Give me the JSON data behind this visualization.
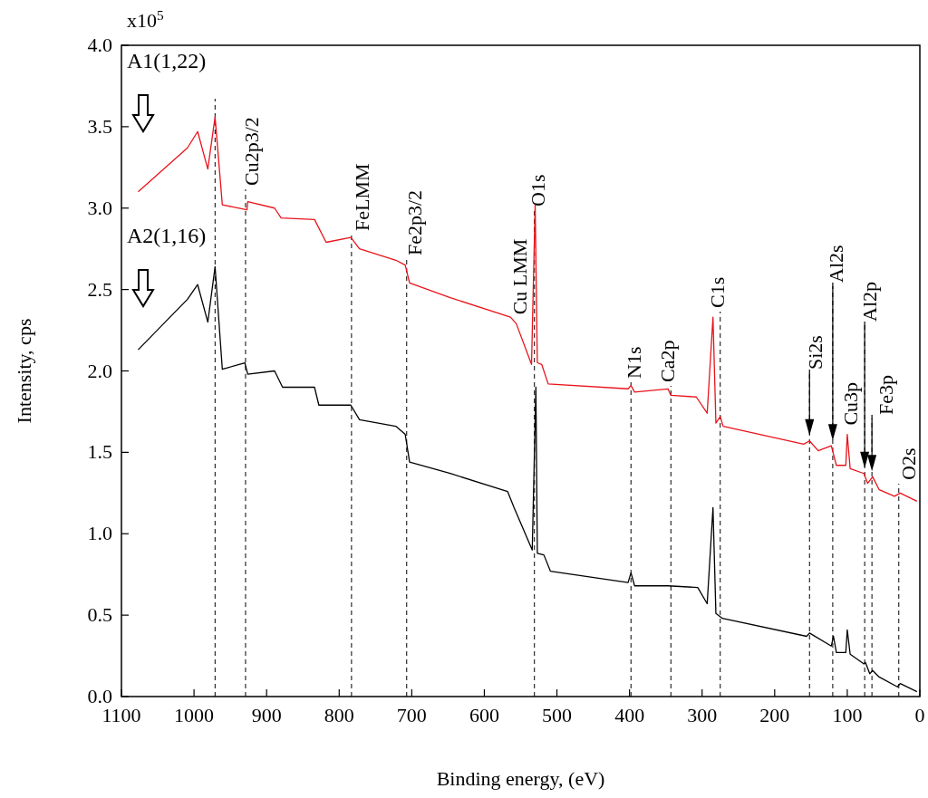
{
  "chart_data": {
    "type": "line",
    "xlabel": "Binding energy, (eV)",
    "ylabel": "Intensity, cps",
    "xlim": [
      1100,
      0
    ],
    "ylim": [
      0,
      4
    ],
    "xticks": [
      1100,
      1000,
      900,
      800,
      700,
      600,
      500,
      400,
      300,
      200,
      100,
      0
    ],
    "yticks": [
      {
        "value": 0,
        "label": "0.0"
      },
      {
        "value": 0.5,
        "label": "0.5"
      },
      {
        "value": 1,
        "label": "1.0"
      },
      {
        "value": 1.5,
        "label": "1.5"
      },
      {
        "value": 2,
        "label": "2.0"
      },
      {
        "value": 2.5,
        "label": "2.5"
      },
      {
        "value": 3,
        "label": "3.0"
      },
      {
        "value": 3.5,
        "label": "3.5"
      },
      {
        "value": 4,
        "label": "4.0"
      }
    ],
    "series": [
      {
        "name": "A1(1,22)",
        "color": "#e8141b",
        "x": [
          1077,
          1009,
          995,
          981,
          971,
          961,
          927,
          926,
          889,
          880,
          834,
          818,
          784,
          772,
          722,
          709,
          703,
          647,
          564,
          556,
          535,
          530,
          527,
          521,
          512,
          402,
          398,
          393,
          347,
          343,
          308,
          293,
          285,
          281,
          275,
          271,
          160,
          152,
          140,
          122,
          115,
          102,
          100,
          96,
          77,
          72,
          65,
          56,
          35,
          27,
          4
        ],
        "values": [
          3.1,
          3.37,
          3.47,
          3.24,
          3.56,
          3.02,
          2.99,
          3.04,
          3.0,
          2.94,
          2.93,
          2.79,
          2.82,
          2.75,
          2.68,
          2.65,
          2.54,
          2.45,
          2.33,
          2.29,
          2.04,
          3.02,
          2.05,
          2.04,
          1.92,
          1.89,
          1.91,
          1.87,
          1.89,
          1.85,
          1.84,
          1.74,
          2.33,
          1.68,
          1.72,
          1.66,
          1.55,
          1.57,
          1.51,
          1.54,
          1.42,
          1.42,
          1.61,
          1.4,
          1.37,
          1.31,
          1.35,
          1.27,
          1.23,
          1.25,
          1.2
        ]
      },
      {
        "name": "A2(1,16)",
        "color": "#000000",
        "x": [
          1077,
          1009,
          995,
          981,
          971,
          961,
          930,
          926,
          889,
          878,
          834,
          828,
          784,
          772,
          722,
          709,
          703,
          647,
          568,
          559,
          534,
          529,
          527,
          518,
          509,
          402,
          398,
          393,
          347,
          306,
          293,
          285,
          281,
          272,
          156,
          152,
          122,
          119,
          115,
          102,
          100,
          96,
          77,
          75,
          69,
          65,
          56,
          31,
          27,
          4
        ],
        "values": [
          2.13,
          2.44,
          2.53,
          2.3,
          2.64,
          2.01,
          2.05,
          1.98,
          2.0,
          1.9,
          1.9,
          1.79,
          1.79,
          1.7,
          1.66,
          1.61,
          1.44,
          1.37,
          1.26,
          1.16,
          0.9,
          1.9,
          0.88,
          0.87,
          0.77,
          0.7,
          0.76,
          0.68,
          0.68,
          0.67,
          0.57,
          1.16,
          0.51,
          0.48,
          0.37,
          0.39,
          0.31,
          0.37,
          0.27,
          0.27,
          0.41,
          0.26,
          0.2,
          0.21,
          0.14,
          0.16,
          0.12,
          0.06,
          0.08,
          0.03
        ]
      }
    ],
    "ref_lines": [
      {
        "axis": "x",
        "value": 971,
        "label": null,
        "color": "#000000",
        "line_style": "dashed"
      },
      {
        "axis": "x",
        "value": 929,
        "label": "Cu2p3/2",
        "color": "#000000",
        "line_style": "dashed"
      },
      {
        "axis": "x",
        "value": 783,
        "label": "FeLMM",
        "color": "#000000",
        "line_style": "dashed"
      },
      {
        "axis": "x",
        "value": 707,
        "label": "Fe2p3/2",
        "color": "#000000",
        "line_style": "dashed"
      },
      {
        "axis": "x",
        "value": 531,
        "label": "O1s",
        "color": "#000000",
        "line_style": "dashed"
      },
      {
        "axis": "x",
        "value": 398,
        "label": "N1s",
        "color": "#000000",
        "line_style": "dashed"
      },
      {
        "axis": "x",
        "value": 343,
        "label": "Ca2p",
        "color": "#000000",
        "line_style": "dashed"
      },
      {
        "axis": "x",
        "value": 275,
        "label": "C1s",
        "color": "#000000",
        "line_style": "dashed"
      },
      {
        "axis": "x",
        "value": 152,
        "label": "Si2s",
        "color": "#000000",
        "line_style": "dashed"
      },
      {
        "axis": "x",
        "value": 120,
        "label": "Al2s",
        "color": "#000000",
        "line_style": "dashed"
      },
      {
        "axis": "x",
        "value": 76,
        "label": "Al2p",
        "color": "#000000",
        "line_style": "dashed"
      },
      {
        "axis": "x",
        "value": 66,
        "label": "Fe3p",
        "color": "#000000",
        "line_style": "dashed"
      },
      {
        "axis": "x",
        "value": 29,
        "label": "O2s",
        "color": "#000000",
        "line_style": "dashed"
      }
    ],
    "annotations": [
      "x10$^{5}$",
      {
        "text": "Cu LMM",
        "x": 556,
        "y": 2.29
      },
      {
        "text": "Cu3p",
        "x": 100,
        "y": 1.61
      }
    ]
  }
}
